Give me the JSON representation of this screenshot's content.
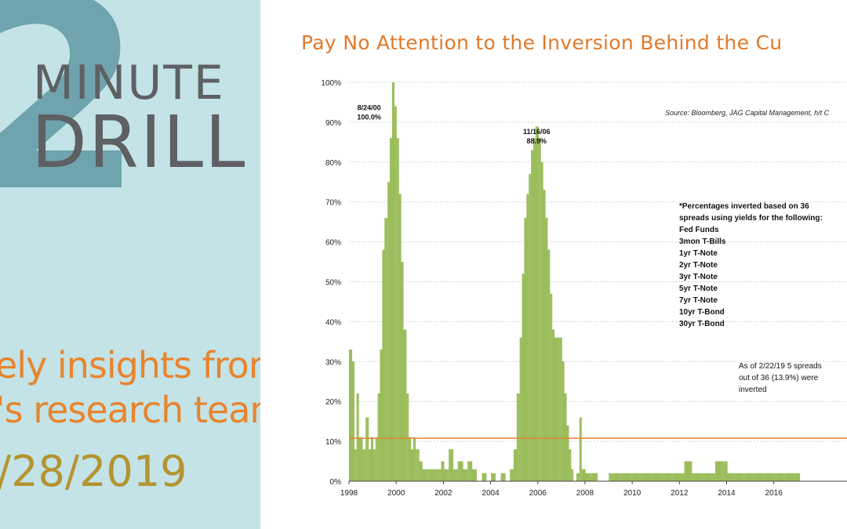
{
  "branding": {
    "big_number": "2",
    "word1": "MINUTE",
    "word2": "DRILL",
    "tagline_line1": "ely insights from",
    "tagline_line2": "'s research team",
    "date": "/28/2019"
  },
  "chart_data": {
    "type": "bar",
    "title": "Pay No Attention to the Inversion Behind the Cu",
    "source": "Source: Bloomberg, JAG Capital Management, h/t C",
    "xlabel": "",
    "ylabel": "",
    "xlim": [
      1998,
      2019.5
    ],
    "ylim": [
      0,
      100
    ],
    "y_ticks": [
      "0%",
      "10%",
      "20%",
      "30%",
      "40%",
      "50%",
      "60%",
      "70%",
      "80%",
      "90%",
      "100%"
    ],
    "x_ticks": [
      "1998",
      "2000",
      "2002",
      "2004",
      "2006",
      "2008",
      "2010",
      "2012",
      "2014",
      "2016"
    ],
    "x_tick_values": [
      1998,
      2000,
      2002,
      2004,
      2006,
      2008,
      2010,
      2012,
      2014,
      2016
    ],
    "grid": true,
    "bar_color": "#9bbd5c",
    "reference_line": {
      "value": 13.9,
      "color": "#e8842e"
    },
    "series_points": [
      [
        1998.0,
        33
      ],
      [
        1998.1,
        30
      ],
      [
        1998.2,
        8
      ],
      [
        1998.3,
        22
      ],
      [
        1998.4,
        11
      ],
      [
        1998.55,
        8
      ],
      [
        1998.7,
        16
      ],
      [
        1998.8,
        8
      ],
      [
        1998.9,
        11
      ],
      [
        1999.0,
        8
      ],
      [
        1999.1,
        11
      ],
      [
        1999.2,
        22
      ],
      [
        1999.3,
        33
      ],
      [
        1999.4,
        58
      ],
      [
        1999.5,
        66
      ],
      [
        1999.6,
        75
      ],
      [
        1999.7,
        86
      ],
      [
        1999.8,
        100
      ],
      [
        1999.9,
        94
      ],
      [
        2000.0,
        86
      ],
      [
        2000.1,
        72
      ],
      [
        2000.2,
        55
      ],
      [
        2000.3,
        38
      ],
      [
        2000.4,
        22
      ],
      [
        2000.5,
        11
      ],
      [
        2000.6,
        8
      ],
      [
        2000.7,
        11
      ],
      [
        2000.8,
        8
      ],
      [
        2000.95,
        5
      ],
      [
        2001.1,
        3
      ],
      [
        2001.5,
        3
      ],
      [
        2001.9,
        5
      ],
      [
        2002.0,
        3
      ],
      [
        2002.2,
        8
      ],
      [
        2002.4,
        3
      ],
      [
        2002.6,
        5
      ],
      [
        2002.8,
        3
      ],
      [
        2003.0,
        5
      ],
      [
        2003.2,
        3
      ],
      [
        2003.4,
        0
      ],
      [
        2003.6,
        2
      ],
      [
        2003.8,
        0
      ],
      [
        2004.0,
        2
      ],
      [
        2004.2,
        0
      ],
      [
        2004.4,
        2
      ],
      [
        2004.6,
        0
      ],
      [
        2004.8,
        3
      ],
      [
        2004.95,
        8
      ],
      [
        2005.1,
        22
      ],
      [
        2005.2,
        36
      ],
      [
        2005.3,
        52
      ],
      [
        2005.4,
        66
      ],
      [
        2005.5,
        72
      ],
      [
        2005.6,
        77
      ],
      [
        2005.7,
        83
      ],
      [
        2005.8,
        86
      ],
      [
        2005.9,
        88.9
      ],
      [
        2006.0,
        86
      ],
      [
        2006.1,
        80
      ],
      [
        2006.2,
        73
      ],
      [
        2006.3,
        66
      ],
      [
        2006.4,
        58
      ],
      [
        2006.5,
        47
      ],
      [
        2006.6,
        38
      ],
      [
        2006.7,
        36
      ],
      [
        2006.8,
        36
      ],
      [
        2006.9,
        36
      ],
      [
        2007.0,
        30
      ],
      [
        2007.1,
        22
      ],
      [
        2007.2,
        14
      ],
      [
        2007.3,
        8
      ],
      [
        2007.4,
        3
      ],
      [
        2007.5,
        0
      ],
      [
        2007.6,
        2
      ],
      [
        2007.75,
        16
      ],
      [
        2007.85,
        3
      ],
      [
        2008.0,
        2
      ],
      [
        2008.5,
        0
      ],
      [
        2009.0,
        2
      ],
      [
        2009.5,
        2
      ],
      [
        2010.0,
        2
      ],
      [
        2010.5,
        2
      ],
      [
        2011.0,
        2
      ],
      [
        2011.5,
        2
      ],
      [
        2012.0,
        2
      ],
      [
        2012.2,
        5
      ],
      [
        2012.5,
        2
      ],
      [
        2013.0,
        2
      ],
      [
        2013.5,
        5
      ],
      [
        2014.0,
        2
      ],
      [
        2014.5,
        2
      ],
      [
        2015.0,
        2
      ],
      [
        2015.5,
        2
      ],
      [
        2016.0,
        2
      ],
      [
        2016.5,
        2
      ],
      [
        2017.0,
        2
      ],
      [
        2017.1,
        0
      ]
    ],
    "annotations": [
      {
        "lines": [
          "8/24/00",
          "100.0%"
        ],
        "x": 1998.85,
        "y": 93
      },
      {
        "lines": [
          "11/16/06",
          "88.9%"
        ],
        "x": 2005.95,
        "y": 87
      }
    ],
    "notes": {
      "intro_lines": [
        "*Percentages inverted based on 36",
        "spreads using yields for the following:"
      ],
      "maturities": [
        "Fed Funds",
        "3mon T-Bills",
        "1yr T-Note",
        "2yr T-Note",
        "3yr T-Note",
        "5yr T-Note",
        "7yr T-Note",
        "10yr T-Bond",
        "30yr T-Bond"
      ],
      "current_lines": [
        "As of 2/22/19 5 spreads",
        "out of 36 (13.9%) were",
        "inverted"
      ]
    }
  }
}
